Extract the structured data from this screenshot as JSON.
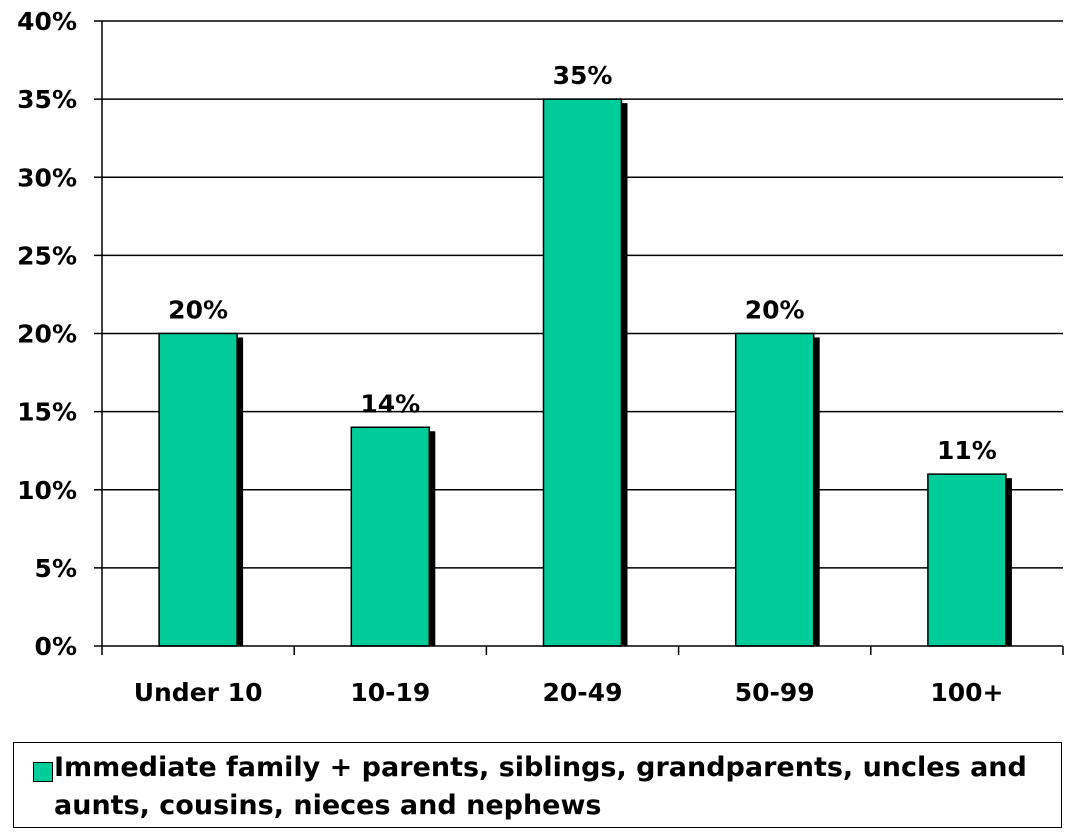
{
  "chart_data": {
    "type": "bar",
    "categories": [
      "Under 10",
      "10-19",
      "20-49",
      "50-99",
      "100+"
    ],
    "series": [
      {
        "name": "Immediate family + parents, siblings, grandparents, uncles and aunts, cousins, nieces and nephews",
        "values": [
          20,
          14,
          35,
          20,
          11
        ],
        "labels": [
          "20%",
          "14%",
          "35%",
          "20%",
          "11%"
        ],
        "color": "#00cc99"
      }
    ],
    "yticks": [
      "0%",
      "5%",
      "10%",
      "15%",
      "20%",
      "25%",
      "30%",
      "35%",
      "40%"
    ],
    "ylim": [
      0,
      40
    ],
    "grid": true,
    "legend_position": "bottom"
  }
}
